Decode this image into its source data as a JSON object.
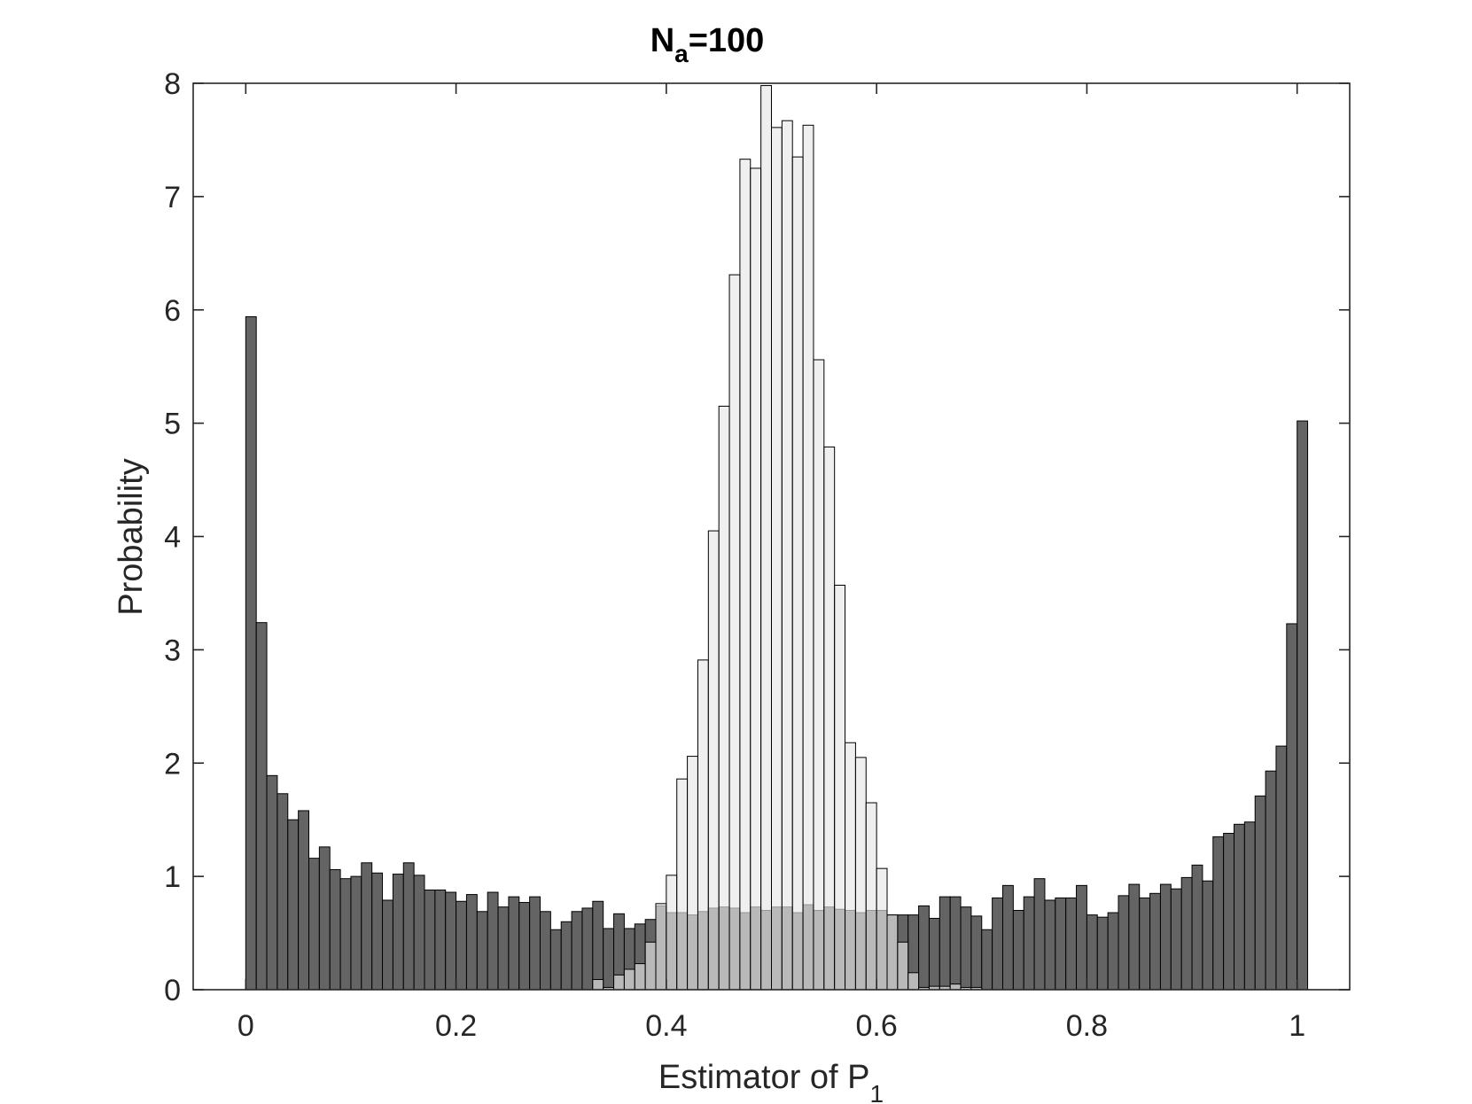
{
  "chart_data": {
    "type": "bar",
    "title": "N",
    "title_subscript": "a",
    "title_suffix": "=100",
    "xlabel": "Estimator of P",
    "xlabel_subscript": "1",
    "ylabel": "Probability",
    "xlim": [
      -0.05,
      1.05
    ],
    "ylim": [
      0,
      8
    ],
    "xticks": [
      0,
      0.2,
      0.4,
      0.6,
      0.8,
      1
    ],
    "xtick_labels": [
      "0",
      "0.2",
      "0.4",
      "0.6",
      "0.8",
      "1"
    ],
    "yticks": [
      0,
      1,
      2,
      3,
      4,
      5,
      6,
      7,
      8
    ],
    "ytick_labels": [
      "0",
      "1",
      "2",
      "3",
      "4",
      "5",
      "6",
      "7",
      "8"
    ],
    "bin_width": 0.01,
    "bin_start": 0,
    "series": [
      {
        "color": "#646464",
        "opacity": 1.0,
        "values": [
          5.94,
          3.24,
          1.89,
          1.73,
          1.5,
          1.58,
          1.16,
          1.26,
          1.06,
          0.98,
          1.0,
          1.12,
          1.03,
          0.79,
          1.02,
          1.12,
          1.01,
          0.88,
          0.88,
          0.86,
          0.78,
          0.84,
          0.69,
          0.86,
          0.73,
          0.82,
          0.77,
          0.82,
          0.69,
          0.53,
          0.6,
          0.69,
          0.72,
          0.78,
          0.54,
          0.67,
          0.54,
          0.58,
          0.62,
          0.74,
          0.68,
          0.68,
          0.66,
          0.69,
          0.72,
          0.73,
          0.72,
          0.68,
          0.73,
          0.7,
          0.73,
          0.73,
          0.68,
          0.75,
          0.7,
          0.73,
          0.71,
          0.7,
          0.68,
          0.7,
          0.7,
          0.66,
          0.66,
          0.66,
          0.74,
          0.63,
          0.82,
          0.82,
          0.73,
          0.65,
          0.53,
          0.81,
          0.92,
          0.7,
          0.82,
          0.98,
          0.79,
          0.81,
          0.81,
          0.92,
          0.66,
          0.64,
          0.68,
          0.83,
          0.93,
          0.81,
          0.85,
          0.93,
          0.89,
          0.99,
          1.1,
          0.96,
          1.35,
          1.38,
          1.46,
          1.48,
          1.71,
          1.93,
          2.15,
          3.23,
          5.02
        ]
      },
      {
        "color": "#e6e6e6",
        "opacity": 0.65,
        "values": [
          0,
          0,
          0,
          0,
          0,
          0,
          0,
          0,
          0,
          0,
          0,
          0,
          0,
          0,
          0,
          0,
          0,
          0,
          0,
          0,
          0,
          0,
          0,
          0,
          0,
          0,
          0,
          0,
          0,
          0,
          0,
          0,
          0,
          0.09,
          0.02,
          0.13,
          0.18,
          0.23,
          0.42,
          0.76,
          1.01,
          1.86,
          2.06,
          2.91,
          4.05,
          5.15,
          6.31,
          7.33,
          7.25,
          7.98,
          7.61,
          7.67,
          7.35,
          7.63,
          5.56,
          4.79,
          3.57,
          2.18,
          2.05,
          1.65,
          1.07,
          0.66,
          0.42,
          0.15,
          0.02,
          0.03,
          0.03,
          0.05,
          0.02,
          0.02,
          0,
          0,
          0,
          0,
          0,
          0,
          0,
          0,
          0,
          0,
          0,
          0,
          0,
          0,
          0,
          0,
          0,
          0,
          0,
          0,
          0,
          0,
          0,
          0,
          0,
          0,
          0,
          0,
          0,
          0,
          0,
          0
        ]
      }
    ]
  }
}
